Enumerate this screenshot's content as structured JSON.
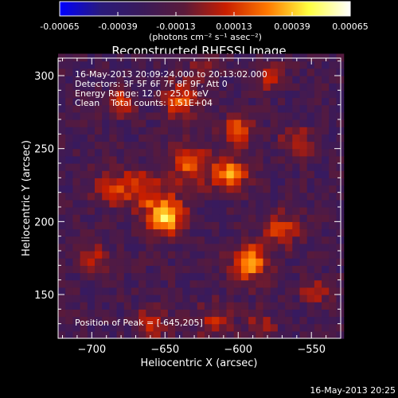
{
  "chart_data": {
    "type": "heatmap",
    "title": "Reconstructed RHESSI Image",
    "xlabel": "Heliocentric X (arcsec)",
    "ylabel": "Heliocentric Y (arcsec)",
    "xlim": [
      -723,
      -530
    ],
    "ylim": [
      120,
      312
    ],
    "x_ticks": [
      -700,
      -650,
      -600,
      -550
    ],
    "y_ticks": [
      150,
      200,
      250,
      300
    ],
    "colorbar": {
      "min": -0.00065,
      "max": 0.00065,
      "tick_values": [
        -0.00065,
        -0.00039,
        -0.00013,
        0.00013,
        0.00039,
        0.00065
      ],
      "tick_labels": [
        "-0.00065",
        "-0.00039",
        "-0.00013",
        "0.00013",
        "0.00039",
        "0.00065"
      ],
      "unit_label": "(photons cm⁻² s⁻¹ asec⁻²)",
      "colors": [
        "#0000ff",
        "#2a1a7a",
        "#3a1a5a",
        "#5a1a3a",
        "#c81e00",
        "#ff7800",
        "#ffff40",
        "#ffffff"
      ]
    },
    "info_lines": [
      "16-May-2013 20:09:24.000 to 20:13:02.000",
      "Detectors: 3F 5F 6F 7F 8F 9F, Att 0",
      "Energy Range: 12.0 - 25.0 keV",
      "Clean    Total counts: 1.51E+04"
    ],
    "peak_label": "Position of Peak = [-645,205]",
    "peak_position": [
      -645,
      205
    ],
    "sources": [
      {
        "x": -650,
        "y": 204,
        "sigma": 9,
        "amp": 0.00065
      },
      {
        "x": -605,
        "y": 233,
        "sigma": 8,
        "amp": 0.00048
      },
      {
        "x": -592,
        "y": 172,
        "sigma": 9,
        "amp": 0.00052
      },
      {
        "x": -600,
        "y": 262,
        "sigma": 7,
        "amp": 0.00042
      },
      {
        "x": -640,
        "y": 283,
        "sigma": 8,
        "amp": 0.00038
      },
      {
        "x": -680,
        "y": 282,
        "sigma": 6,
        "amp": 0.00034
      },
      {
        "x": -560,
        "y": 254,
        "sigma": 7,
        "amp": 0.00034
      },
      {
        "x": -570,
        "y": 195,
        "sigma": 8,
        "amp": 0.00034
      },
      {
        "x": -548,
        "y": 152,
        "sigma": 6,
        "amp": 0.0003
      },
      {
        "x": -632,
        "y": 238,
        "sigma": 10,
        "amp": 0.00038
      },
      {
        "x": -665,
        "y": 223,
        "sigma": 9,
        "amp": 0.00034
      },
      {
        "x": -685,
        "y": 224,
        "sigma": 9,
        "amp": 0.00028
      },
      {
        "x": -700,
        "y": 175,
        "sigma": 7,
        "amp": 0.00026
      },
      {
        "x": -660,
        "y": 130,
        "sigma": 8,
        "amp": 0.00024
      },
      {
        "x": -618,
        "y": 132,
        "sigma": 8,
        "amp": 0.00026
      },
      {
        "x": -585,
        "y": 128,
        "sigma": 7,
        "amp": 0.00024
      },
      {
        "x": -580,
        "y": 300,
        "sigma": 7,
        "amp": 0.00026
      },
      {
        "x": -625,
        "y": 305,
        "sigma": 7,
        "amp": 0.00028
      }
    ]
  },
  "footer": {
    "timestamp": "16-May-2013 20:25"
  }
}
